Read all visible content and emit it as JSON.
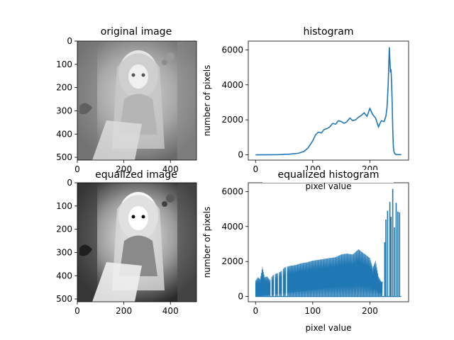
{
  "chart_data": [
    {
      "type": "image",
      "title": "original image",
      "image_description": "grayscale anime illustration of a girl with long light hair, flower headpiece, holding a bouquet, window with curtains in background; low contrast",
      "xlim": [
        0,
        512
      ],
      "ylim": [
        512,
        0
      ],
      "xticks": [
        0,
        200,
        400
      ],
      "yticks": [
        0,
        100,
        200,
        300,
        400,
        500
      ],
      "xtick_labels": [
        "0",
        "200",
        "400"
      ],
      "ytick_labels": [
        "0",
        "100",
        "200",
        "300",
        "400",
        "500"
      ]
    },
    {
      "type": "line",
      "title": "histogram",
      "xlabel": "pixel value",
      "ylabel": "number of pixels",
      "xlim": [
        -12.75,
        267.75
      ],
      "ylim": [
        -300,
        6500
      ],
      "xticks": [
        0,
        100,
        200
      ],
      "yticks": [
        0,
        2000,
        4000,
        6000
      ],
      "xtick_labels": [
        "0",
        "100",
        "200"
      ],
      "ytick_labels": [
        "0",
        "2000",
        "4000",
        "6000"
      ],
      "color": "#1f77b4",
      "x": [
        0,
        40,
        60,
        75,
        85,
        92,
        100,
        105,
        110,
        115,
        120,
        125,
        130,
        135,
        140,
        145,
        150,
        155,
        160,
        165,
        170,
        175,
        180,
        185,
        190,
        195,
        200,
        205,
        210,
        215,
        220,
        225,
        228,
        230,
        232,
        234,
        236,
        237,
        238,
        239,
        240,
        241,
        242,
        243,
        244,
        245,
        246,
        247,
        248,
        250,
        255
      ],
      "y": [
        0,
        10,
        40,
        90,
        200,
        400,
        800,
        1150,
        1300,
        1250,
        1450,
        1500,
        1600,
        1800,
        1750,
        1950,
        1900,
        1800,
        1900,
        2100,
        1950,
        2000,
        2150,
        2250,
        2400,
        2200,
        2650,
        2300,
        2100,
        1600,
        1950,
        1900,
        2200,
        2700,
        4000,
        6150,
        4700,
        4900,
        4100,
        3000,
        1500,
        500,
        200,
        100,
        60,
        30,
        20,
        15,
        10,
        10,
        10
      ]
    },
    {
      "type": "image",
      "title": "equalized image",
      "image_description": "same grayscale illustration with enhanced contrast (darker darks, brighter highlights)",
      "xlim": [
        0,
        512
      ],
      "ylim": [
        512,
        0
      ],
      "xticks": [
        0,
        200,
        400
      ],
      "yticks": [
        0,
        100,
        200,
        300,
        400,
        500
      ],
      "xtick_labels": [
        "0",
        "200",
        "400"
      ],
      "ytick_labels": [
        "0",
        "100",
        "200",
        "300",
        "400",
        "500"
      ]
    },
    {
      "type": "line",
      "title": "equalized histogram",
      "xlabel": "pixel value",
      "ylabel": "number of pixels",
      "xlim": [
        -12.75,
        267.75
      ],
      "ylim": [
        -300,
        6500
      ],
      "xticks": [
        0,
        100,
        200
      ],
      "yticks": [
        0,
        2000,
        4000,
        6000
      ],
      "xtick_labels": [
        "0",
        "100",
        "200"
      ],
      "ytick_labels": [
        "0",
        "2000",
        "4000",
        "6000"
      ],
      "color": "#1f77b4",
      "envelope_x": [
        0,
        4,
        8,
        12,
        16,
        20,
        25,
        30,
        35,
        40,
        45,
        50,
        55,
        60,
        70,
        80,
        90,
        100,
        110,
        120,
        130,
        140,
        150,
        160,
        170,
        180,
        190,
        200,
        205,
        210,
        215,
        220
      ],
      "envelope_y": [
        900,
        1100,
        1000,
        1700,
        1100,
        1150,
        950,
        1200,
        1300,
        1350,
        1450,
        1650,
        1700,
        1750,
        1800,
        1900,
        1950,
        2050,
        2100,
        2150,
        2200,
        2250,
        2400,
        2450,
        2400,
        2700,
        2450,
        2200,
        1650,
        2050,
        1150,
        850
      ],
      "spikes": [
        {
          "x": 226,
          "y": 3100
        },
        {
          "x": 228,
          "y": 4400
        },
        {
          "x": 231,
          "y": 4900
        },
        {
          "x": 235,
          "y": 5400
        },
        {
          "x": 237,
          "y": 4550
        },
        {
          "x": 240,
          "y": 6150
        },
        {
          "x": 243,
          "y": 3950
        },
        {
          "x": 246,
          "y": 5350
        },
        {
          "x": 249,
          "y": 4850
        },
        {
          "x": 252,
          "y": 4800
        }
      ],
      "gaps_x": [
        27,
        33,
        40,
        47,
        54,
        226,
        234
      ]
    }
  ]
}
